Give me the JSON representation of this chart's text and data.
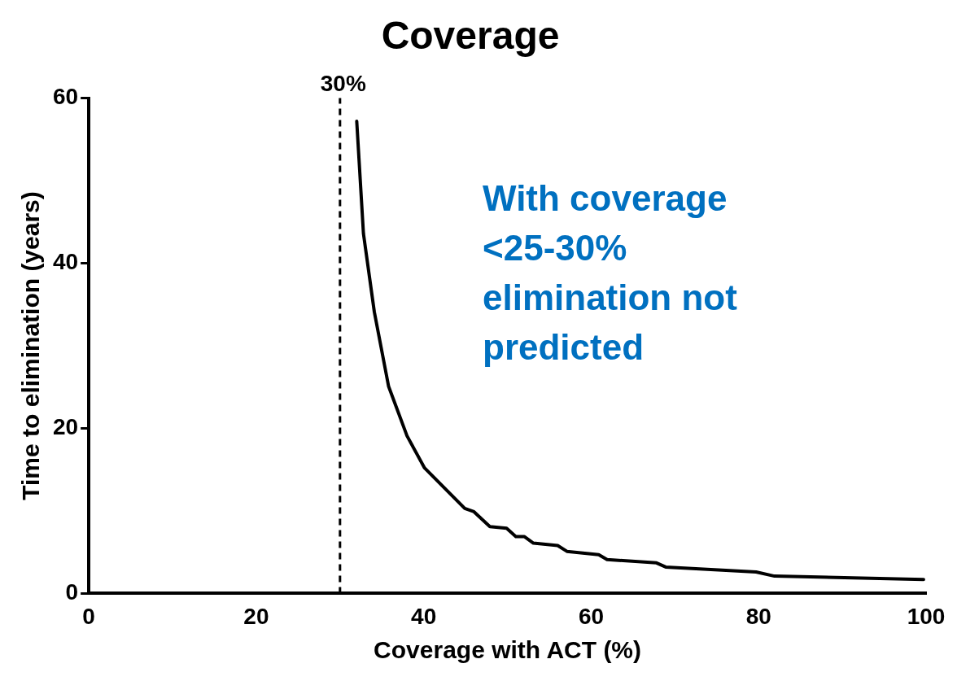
{
  "chart_data": {
    "type": "line",
    "title": "Coverage",
    "xlabel": "Coverage with ACT (%)",
    "ylabel": "Time to elimination (years)",
    "x": [
      32.0,
      32.8,
      34.1,
      35.8,
      38.0,
      40.1,
      44.9,
      46.0,
      47.9,
      49.9,
      51.0,
      52.0,
      53.1,
      56.0,
      57.1,
      60.9,
      61.9,
      67.8,
      68.9,
      79.7,
      81.9,
      99.7
    ],
    "series": [
      {
        "color": "#000000",
        "values": [
          57.2,
          43.6,
          34.1,
          25.1,
          19.1,
          15.2,
          10.3,
          9.9,
          8.1,
          7.9,
          6.9,
          6.9,
          6.1,
          5.8,
          5.1,
          4.7,
          4.1,
          3.7,
          3.2,
          2.6,
          2.1,
          1.7
        ]
      }
    ],
    "xlim": [
      0,
      100
    ],
    "xticks": [
      0,
      20,
      40,
      60,
      80,
      100
    ],
    "ylim": [
      0,
      60
    ],
    "yticks": [
      0,
      20,
      40,
      60
    ],
    "grid": false,
    "legend": false,
    "marker": "none",
    "line_style": "solid",
    "ref_lines": [
      {
        "axis": "x",
        "value": 30,
        "label": "30%",
        "color": "#000000",
        "line_style": "dashed"
      }
    ],
    "annotations": [
      "With coverage\n<25-30%\nelimination not\npredicted"
    ]
  }
}
